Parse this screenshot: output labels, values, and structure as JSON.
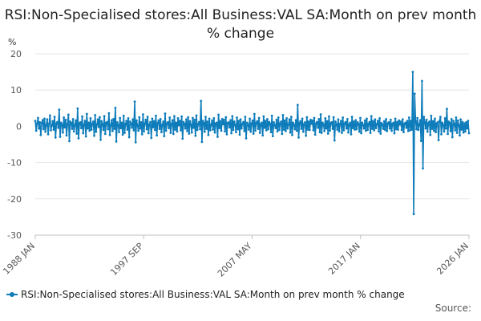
{
  "chart_data": {
    "type": "line",
    "title": "RSI:Non-Specialised stores:All Business:VAL SA:Month on prev month % change",
    "ylabel": "%",
    "xlabel": "",
    "ylim": [
      -30,
      20
    ],
    "yticks": [
      20,
      10,
      0,
      -10,
      -20,
      -30
    ],
    "x_range": [
      "1988 JAN",
      "2026 JAN"
    ],
    "xticks": [
      "1988 JAN",
      "1997 SEP",
      "2007 MAY",
      "2017 JAN",
      "2026 JAN"
    ],
    "grid": true,
    "legend_position": "bottom",
    "series": [
      {
        "name": "RSI:Non-Specialised stores:All Business:VAL SA:Month on prev month % change",
        "color": "#0e7cba",
        "values": [
          1.5,
          -1.2,
          0.8,
          2.3,
          -0.6,
          1.1,
          -2.4,
          0.9,
          1.7,
          -0.8,
          2.1,
          -1.5,
          0.4,
          1.9,
          -2.2,
          0.7,
          3.0,
          -1.1,
          0.2,
          1.4,
          -0.9,
          2.6,
          -3.1,
          0.8,
          1.2,
          -0.4,
          4.6,
          -2.9,
          1.0,
          0.5,
          -1.7,
          2.4,
          -0.3,
          1.8,
          -2.5,
          0.6,
          3.2,
          -4.1,
          1.3,
          0.9,
          -0.7,
          2.0,
          -1.4,
          0.3,
          1.6,
          -2.0,
          4.9,
          -3.3,
          0.8,
          1.1,
          -0.5,
          2.7,
          -1.9,
          0.4,
          1.5,
          -2.8,
          3.4,
          -0.6,
          1.0,
          -1.2,
          2.2,
          -0.9,
          0.7,
          1.3,
          -2.6,
          3.1,
          -1.5,
          0.5,
          1.9,
          -0.2,
          2.5,
          -3.7,
          1.4,
          0.6,
          -1.0,
          2.8,
          -2.1,
          0.9,
          1.2,
          -0.8,
          3.6,
          -2.4,
          0.3,
          1.7,
          -1.3,
          2.0,
          -0.7,
          5.1,
          -4.2,
          1.1,
          0.4,
          -1.6,
          2.3,
          -0.5,
          1.0,
          -2.3,
          2.9,
          -1.8,
          0.6,
          1.5,
          -0.9,
          2.2,
          -3.0,
          1.3,
          0.8,
          -0.4,
          1.9,
          -1.1,
          6.8,
          -4.4,
          1.6,
          0.2,
          -1.2,
          2.5,
          -0.6,
          1.1,
          -2.2,
          3.3,
          -1.4,
          0.7,
          1.8,
          -0.8,
          2.6,
          -1.9,
          0.5,
          1.2,
          -3.2,
          2.1,
          -0.3,
          1.4,
          -1.0,
          2.9,
          -2.5,
          0.9,
          1.6,
          -0.7,
          2.0,
          -1.6,
          0.4,
          1.3,
          -2.7,
          3.5,
          -1.2,
          0.8,
          1.1,
          -0.5,
          2.4,
          -1.8,
          0.6,
          1.7,
          -2.1,
          2.8,
          -0.9,
          1.0,
          -1.4,
          2.2,
          0.3,
          1.5,
          -1.1,
          2.7,
          -3.4,
          1.2,
          0.7,
          -0.6,
          1.9,
          -1.3,
          2.5,
          -2.0,
          1.4,
          0.5,
          -1.7,
          2.3,
          -0.4,
          1.8,
          -2.6,
          3.0,
          -1.0,
          0.6,
          1.2,
          -0.8,
          7.0,
          -4.3,
          1.5,
          0.9,
          -1.5,
          2.6,
          -0.7,
          1.3,
          -2.4,
          2.1,
          -1.1,
          0.4,
          1.6,
          -0.9,
          2.2,
          -1.7,
          0.8,
          1.0,
          -2.9,
          3.2,
          -0.5,
          1.4,
          -1.2,
          2.0,
          0.6,
          1.8,
          -1.4,
          2.5,
          -2.2,
          0.9,
          1.1,
          -0.3,
          1.7,
          -1.9,
          2.8,
          -1.0,
          1.3,
          0.4,
          -1.6,
          2.4,
          -0.8,
          1.5,
          -2.3,
          1.9,
          -0.6,
          0.7,
          1.2,
          -1.3,
          2.6,
          -3.3,
          1.0,
          0.5,
          -0.9,
          2.1,
          -1.5,
          0.8,
          1.6,
          -2.0,
          3.4,
          -1.2,
          0.9,
          1.4,
          -0.7,
          2.3,
          -1.8,
          0.6,
          1.0,
          -2.5,
          2.7,
          -0.4,
          1.5,
          -1.1,
          2.0,
          -0.8,
          1.2,
          0.7,
          -1.6,
          2.9,
          -2.7,
          1.1,
          0.3,
          -0.5,
          1.8,
          -1.4,
          2.4,
          -1.0,
          0.8,
          1.3,
          -2.1,
          3.1,
          -0.9,
          1.6,
          -1.3,
          2.2,
          -0.6,
          0.5,
          1.9,
          -1.7,
          2.6,
          -2.4,
          1.0,
          0.4,
          -0.8,
          1.7,
          -1.2,
          5.9,
          -3.1,
          0.9,
          1.4,
          -0.7,
          2.1,
          -1.5,
          0.6,
          1.1,
          -2.6,
          2.5,
          -0.9,
          1.3,
          -1.0,
          1.8,
          0.7,
          1.6,
          -1.1,
          2.3,
          -2.3,
          0.8,
          1.2,
          -0.4,
          2.0,
          -1.6,
          3.3,
          -1.8,
          1.0,
          0.5,
          -1.3,
          2.2,
          -0.6,
          1.4,
          -2.0,
          2.7,
          -1.2,
          0.9,
          1.1,
          -0.7,
          2.5,
          -3.9,
          1.3,
          0.6,
          -0.9,
          1.9,
          -1.4,
          0.7,
          1.5,
          -1.8,
          2.4,
          -1.1,
          0.8,
          1.2,
          -0.6,
          2.0,
          -1.7,
          0.5,
          1.0,
          -2.2,
          2.6,
          -0.5,
          1.3,
          -0.9,
          1.7,
          -0.8,
          1.1,
          0.6,
          -1.5,
          2.3,
          -1.9,
          1.0,
          0.4,
          -0.6,
          1.6,
          -1.2,
          2.1,
          -1.0,
          0.7,
          1.2,
          -1.8,
          2.8,
          -0.7,
          1.4,
          -1.1,
          1.9,
          -0.5,
          0.6,
          1.5,
          -1.4,
          2.2,
          -2.0,
          0.9,
          0.5,
          -0.7,
          1.4,
          -1.0,
          2.0,
          -1.3,
          0.8,
          1.1,
          -0.6,
          1.8,
          -1.2,
          0.7,
          1.0,
          -1.9,
          2.1,
          -0.8,
          1.2,
          -0.9,
          1.6,
          0.5,
          1.3,
          -1.0,
          1.9,
          -1.6,
          0.7,
          1.0,
          -0.4,
          1.5,
          -1.3,
          2.4,
          -1.1,
          1.5,
          -0.9,
          15.0,
          -24.2,
          9.0,
          1.5,
          -0.8,
          2.3,
          -1.0,
          0.5,
          1.7,
          -4.0,
          12.5,
          -11.6,
          2.6,
          1.2,
          -0.6,
          1.8,
          -1.5,
          0.9,
          1.3,
          -2.4,
          2.9,
          -0.7,
          1.4,
          -1.2,
          2.1,
          -1.6,
          0.8,
          1.1,
          -3.8,
          1.5,
          2.6,
          -2.2,
          1.0,
          0.4,
          -1.4,
          2.2,
          -0.6,
          4.8,
          -2.1,
          1.3,
          0.9,
          -1.3,
          2.0,
          -3.0,
          1.5,
          0.7,
          -1.1,
          2.4,
          -1.8,
          1.6,
          0.3,
          -2.5,
          1.9,
          -0.9,
          1.2,
          -1.7,
          0.8,
          -1.4,
          1.1,
          -0.6,
          1.5,
          -1.9
        ]
      }
    ]
  },
  "source_label": "Source:"
}
